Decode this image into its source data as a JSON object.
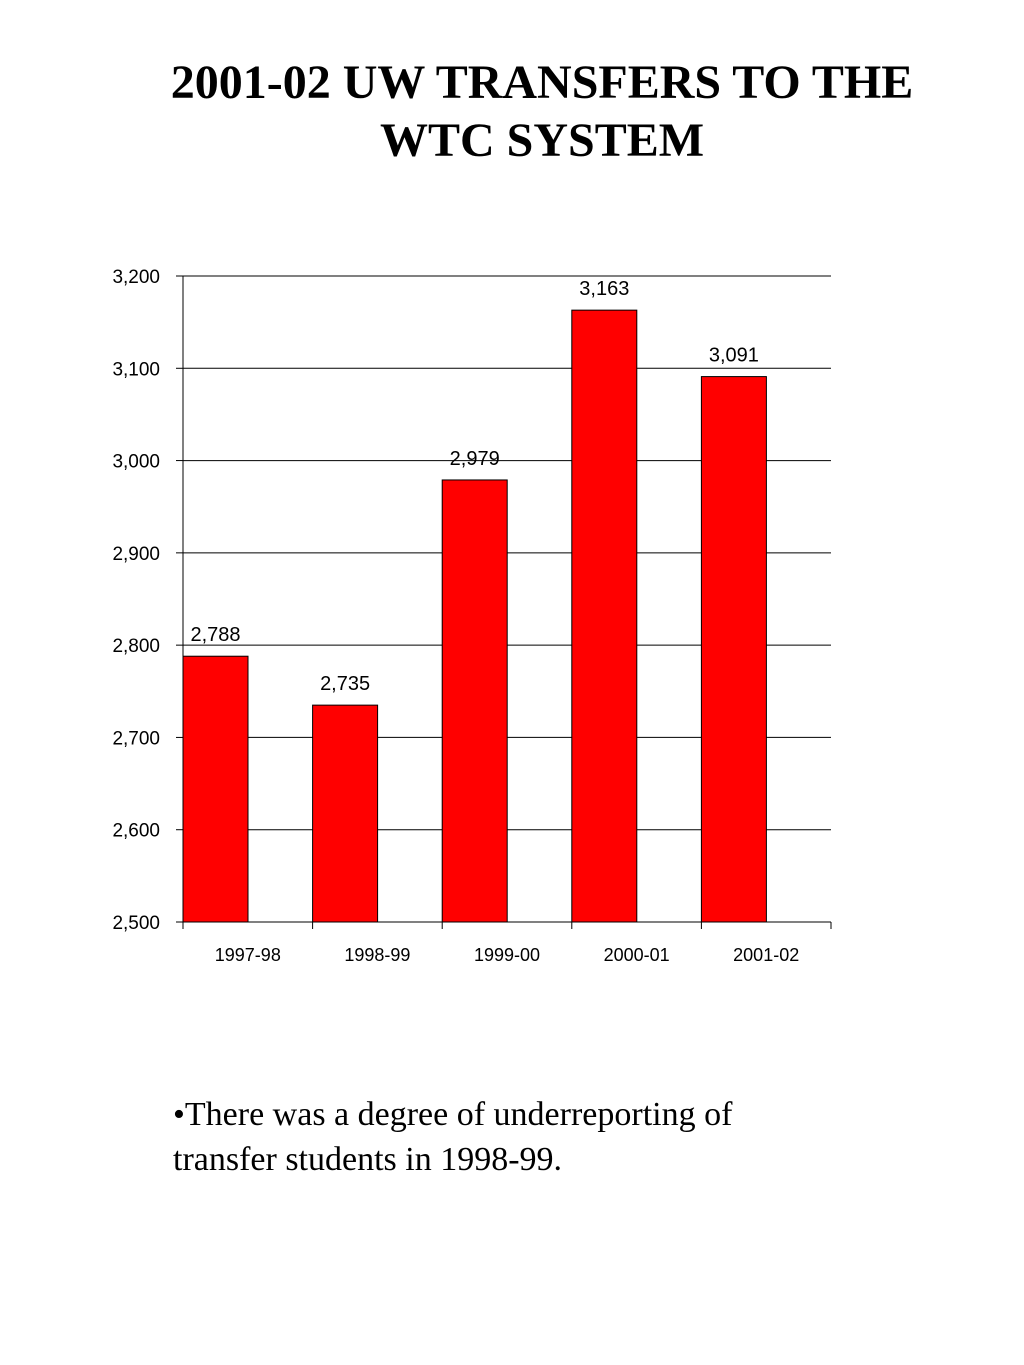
{
  "title_lines": [
    "2001-02 UW TRANSFERS TO THE",
    "WTC SYSTEM"
  ],
  "chart_data": {
    "type": "bar",
    "title": "2001-02 UW TRANSFERS TO THE WTC SYSTEM",
    "categories": [
      "1997-98",
      "1998-99",
      "1999-00",
      "2000-01",
      "2001-02"
    ],
    "values": [
      2788,
      2735,
      2979,
      3163,
      3091
    ],
    "data_labels": [
      "2,788",
      "2,735",
      "2,979",
      "3,163",
      "3,091"
    ],
    "ylim": [
      2500,
      3200
    ],
    "y_ticks": [
      2500,
      2600,
      2700,
      2800,
      2900,
      3000,
      3100,
      3200
    ],
    "y_tick_labels": [
      "2,500",
      "2,600",
      "2,700",
      "2,800",
      "2,900",
      "3,000",
      "3,100",
      "3,200"
    ],
    "xlabel": "",
    "ylabel": "",
    "grid": true,
    "bar_color": "#ff0000"
  },
  "note": "•There was a degree of underreporting of transfer students in 1998-99."
}
